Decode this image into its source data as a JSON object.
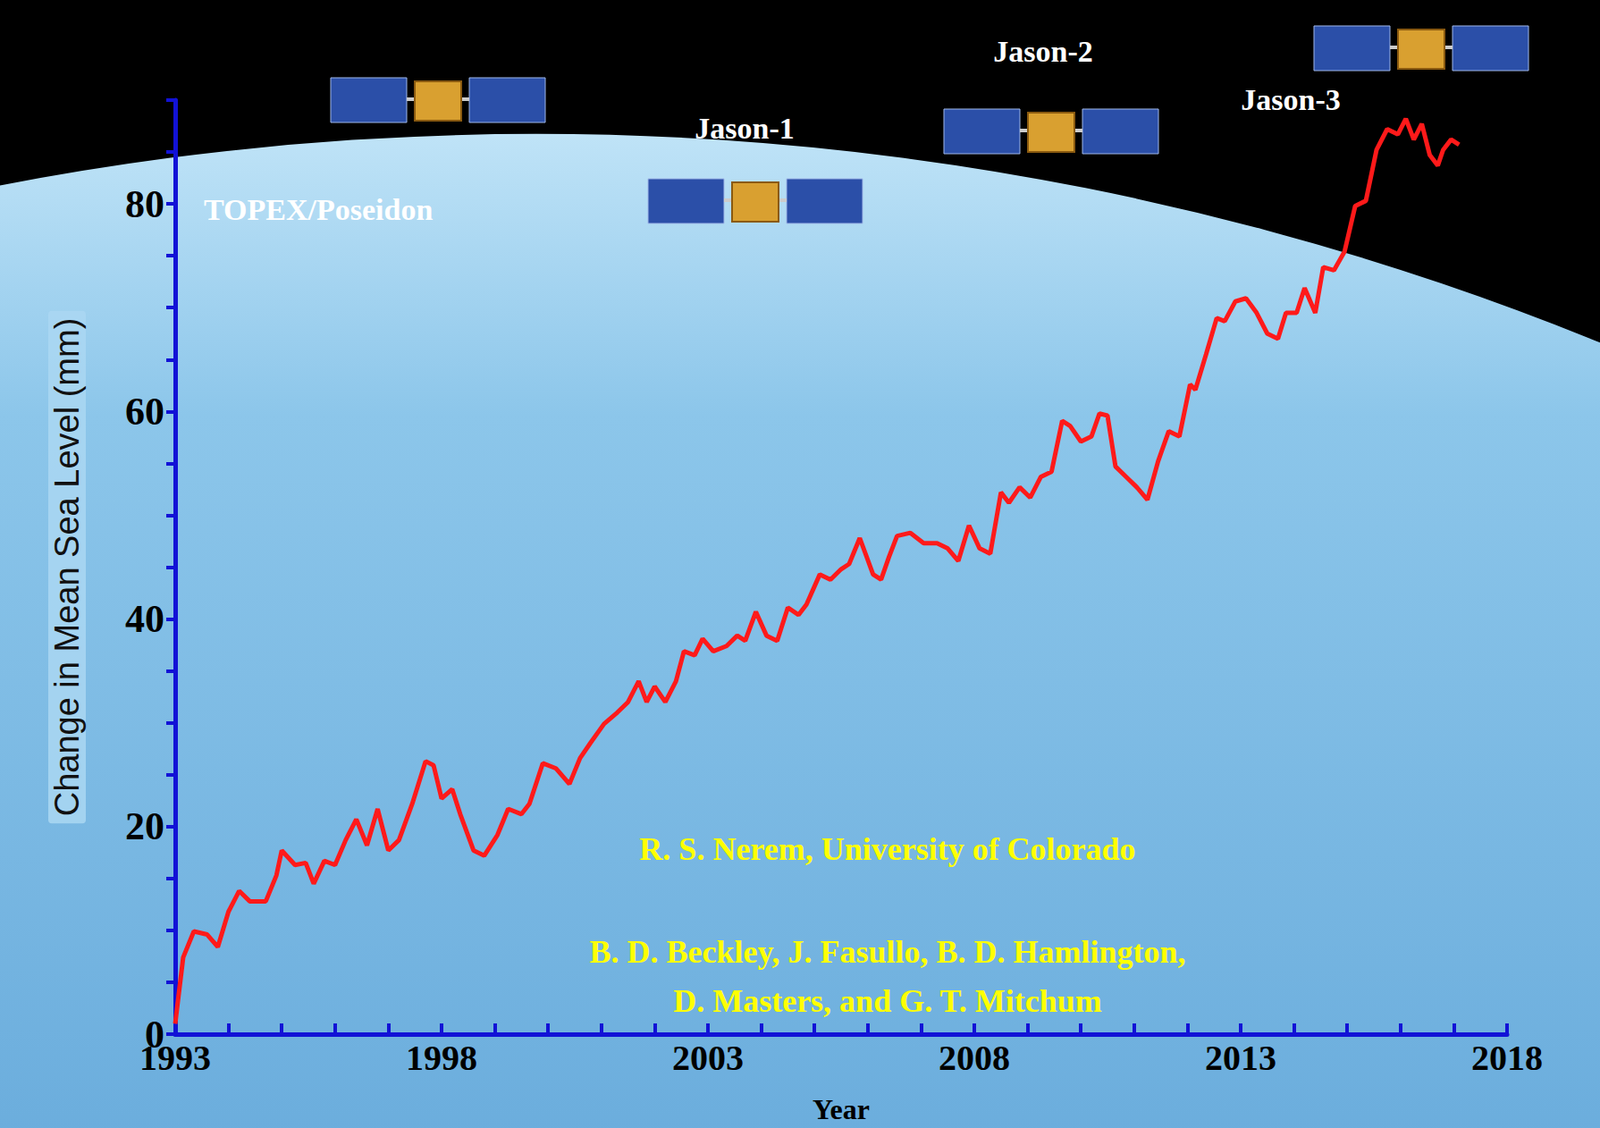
{
  "chart_data": {
    "type": "line",
    "x_label": "Year",
    "y_label": "Change in Mean Sea Level (mm)",
    "annotations": [
      "TOPEX/Poseidon",
      "Jason-1",
      "Jason-2",
      "Jason-3",
      "R. S. Nerem, University of Colorado",
      "B. D. Beckley, J. Fasullo, B. D. Hamlington,",
      "D. Masters, and G. T. Mitchum"
    ],
    "color": "#ff1a1a",
    "grid": false,
    "xlim": [
      1993,
      2018
    ],
    "ylim": [
      0,
      90
    ],
    "xticks": [
      1993,
      1998,
      2003,
      2008,
      2013,
      2018
    ],
    "yticks": [
      0,
      20,
      40,
      60,
      80
    ],
    "x": [
      1993.0,
      1993.15,
      1993.35,
      1993.6,
      1993.8,
      1994.0,
      1994.2,
      1994.4,
      1994.7,
      1994.9,
      1995.0,
      1995.25,
      1995.45,
      1995.6,
      1995.8,
      1996.0,
      1996.2,
      1996.4,
      1996.6,
      1996.8,
      1997.0,
      1997.2,
      1997.45,
      1997.7,
      1997.85,
      1998.0,
      1998.2,
      1998.35,
      1998.6,
      1998.8,
      1999.05,
      1999.25,
      1999.5,
      1999.65,
      1999.9,
      2000.15,
      2000.4,
      2000.6,
      2000.8,
      2001.05,
      2001.3,
      2001.5,
      2001.7,
      2001.85,
      2002.0,
      2002.2,
      2002.4,
      2002.55,
      2002.75,
      2002.9,
      2003.1,
      2003.35,
      2003.55,
      2003.7,
      2003.9,
      2004.1,
      2004.3,
      2004.5,
      2004.7,
      2004.85,
      2005.1,
      2005.3,
      2005.5,
      2005.65,
      2005.85,
      2006.1,
      2006.25,
      2006.4,
      2006.55,
      2006.8,
      2007.05,
      2007.3,
      2007.5,
      2007.7,
      2007.9,
      2008.1,
      2008.3,
      2008.5,
      2008.65,
      2008.85,
      2009.05,
      2009.25,
      2009.45,
      2009.65,
      2009.8,
      2010.0,
      2010.2,
      2010.35,
      2010.5,
      2010.65,
      2010.85,
      2011.05,
      2011.25,
      2011.45,
      2011.65,
      2011.85,
      2012.05,
      2012.15,
      2012.35,
      2012.55,
      2012.7,
      2012.9,
      2013.1,
      2013.3,
      2013.5,
      2013.7,
      2013.85,
      2014.05,
      2014.2,
      2014.4,
      2014.55,
      2014.75,
      2014.95,
      2015.15,
      2015.35,
      2015.55,
      2015.75,
      2015.95,
      2016.1,
      2016.25,
      2016.4,
      2016.55,
      2016.7,
      2016.8,
      2016.95,
      2017.1
    ],
    "values": [
      1.0,
      7.4,
      9.9,
      9.6,
      8.4,
      11.8,
      13.8,
      12.8,
      12.8,
      15.3,
      17.7,
      16.3,
      16.5,
      14.5,
      16.7,
      16.3,
      18.7,
      20.7,
      18.2,
      21.7,
      17.7,
      18.7,
      22.2,
      26.3,
      25.9,
      22.7,
      23.6,
      21.2,
      17.7,
      17.2,
      19.2,
      21.7,
      21.2,
      22.2,
      26.1,
      25.6,
      24.1,
      26.6,
      28.1,
      29.9,
      31.0,
      32.0,
      34.0,
      32.0,
      33.5,
      32.0,
      34.0,
      36.9,
      36.5,
      38.1,
      36.9,
      37.4,
      38.4,
      37.9,
      40.7,
      38.4,
      37.9,
      41.1,
      40.4,
      41.4,
      44.3,
      43.8,
      44.8,
      45.3,
      47.8,
      44.3,
      43.8,
      46.0,
      48.0,
      48.3,
      47.3,
      47.3,
      46.8,
      45.6,
      49.0,
      46.8,
      46.3,
      52.2,
      51.2,
      52.7,
      51.7,
      53.7,
      54.2,
      59.1,
      58.6,
      57.1,
      57.6,
      59.8,
      59.6,
      54.7,
      53.7,
      52.7,
      51.5,
      55.2,
      58.1,
      57.6,
      62.6,
      62.1,
      65.5,
      69.0,
      68.7,
      70.6,
      70.9,
      69.5,
      67.5,
      67.0,
      69.5,
      69.5,
      71.9,
      69.5,
      73.9,
      73.6,
      75.4,
      79.8,
      80.3,
      85.2,
      87.2,
      86.7,
      88.2,
      86.2,
      87.7,
      84.7,
      83.7,
      85.2,
      86.2,
      85.7
    ]
  }
}
